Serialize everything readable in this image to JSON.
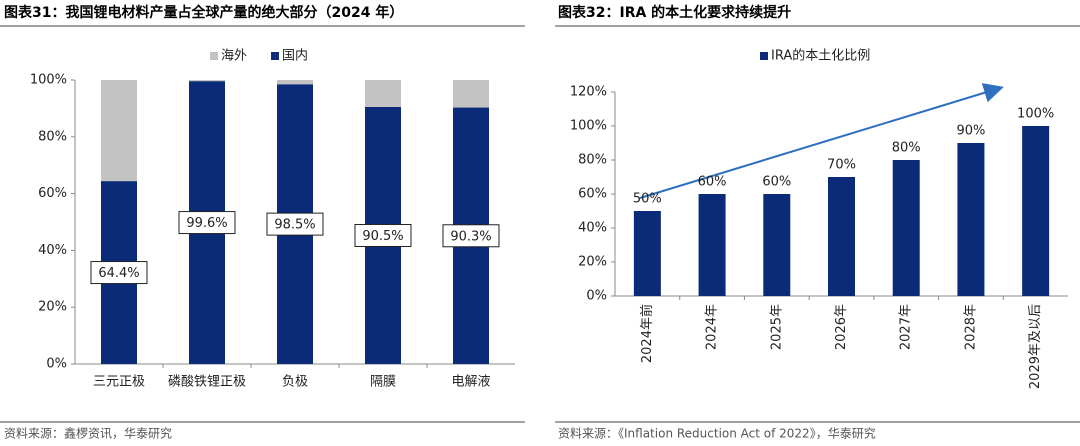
{
  "chart_data": [
    {
      "type": "stacked_bar",
      "title": "图表31：我国锂电材料产量占全球产量的绝大部分（2024 年）",
      "categories": [
        "三元正极",
        "磷酸铁锂正极",
        "负极",
        "隔膜",
        "电解液"
      ],
      "series": [
        {
          "name": "国内",
          "color": "#0b2a78",
          "values": [
            64.4,
            99.6,
            98.5,
            90.5,
            90.3
          ],
          "value_labels": [
            "64.4%",
            "99.6%",
            "98.5%",
            "90.5%",
            "90.3%"
          ]
        },
        {
          "name": "海外",
          "color": "#c3c3c3",
          "values": [
            35.6,
            0.4,
            1.5,
            9.5,
            9.7
          ]
        }
      ],
      "ylim": [
        0,
        100
      ],
      "yticks": [
        {
          "value": 0,
          "label": "0%"
        },
        {
          "value": 20,
          "label": "20%"
        },
        {
          "value": 40,
          "label": "40%"
        },
        {
          "value": 60,
          "label": "60%"
        },
        {
          "value": 80,
          "label": "80%"
        },
        {
          "value": 100,
          "label": "100%"
        }
      ],
      "legend": "top",
      "source": "资料来源：鑫椤资讯，华泰研究"
    },
    {
      "type": "bar",
      "title": "图表32：IRA 的本土化要求持续提升",
      "categories": [
        "2024年前",
        "2024年",
        "2025年",
        "2026年",
        "2027年",
        "2028年",
        "2029年及以后"
      ],
      "series": [
        {
          "name": "IRA的本土化比例",
          "color": "#0b2a78",
          "values": [
            50,
            60,
            60,
            70,
            80,
            90,
            100
          ],
          "value_labels": [
            "50%",
            "60%",
            "60%",
            "70%",
            "80%",
            "90%",
            "100%"
          ]
        }
      ],
      "ylim": [
        0,
        120
      ],
      "yticks": [
        {
          "value": 0,
          "label": "0%"
        },
        {
          "value": 20,
          "label": "20%"
        },
        {
          "value": 40,
          "label": "40%"
        },
        {
          "value": 60,
          "label": "60%"
        },
        {
          "value": 80,
          "label": "80%"
        },
        {
          "value": 100,
          "label": "100%"
        },
        {
          "value": 120,
          "label": "120%"
        }
      ],
      "legend": "top",
      "source": "资料来源：《Inflation Reduction Act of 2022》，华泰研究"
    }
  ]
}
